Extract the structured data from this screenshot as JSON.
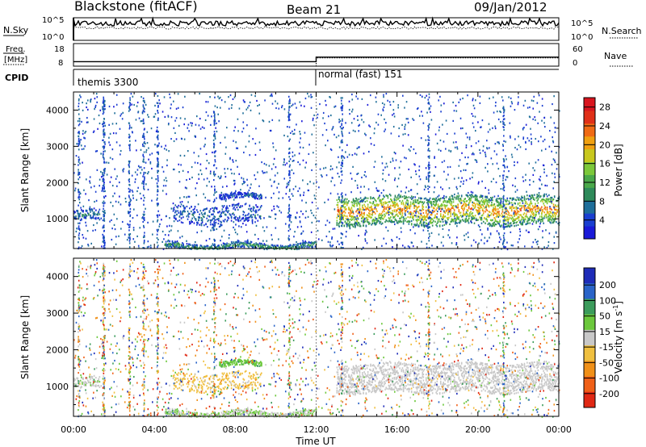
{
  "header": {
    "radar_title": "Blackstone (fitACF)",
    "beam": "Beam 21",
    "date": "09/Jan/2012"
  },
  "panels": {
    "sky": {
      "left_label": "N.Sky",
      "right_label": "N.Search",
      "tick_top": "10^5",
      "tick_bottom": "10^0",
      "right_tick_top": "10^5",
      "right_tick_bottom": "10^0"
    },
    "freq": {
      "left_label_1": "Freq.",
      "left_label_2": "[MHz]",
      "tick_top": "18",
      "tick_bottom": "8",
      "right_label": "Nave",
      "right_tick_top": "60",
      "right_tick_bottom": "0"
    },
    "cpid": {
      "label": "CPID",
      "mode_1": "themis 3300",
      "mode_2": "normal (fast) 151"
    },
    "power": {
      "ylabel": "Slant Range [km]",
      "colorbar_label": "Power [dB]"
    },
    "velocity": {
      "ylabel": "Slant Range [km]",
      "colorbar_label": "Velocity [m s",
      "colorbar_label_sup": "-1",
      "colorbar_label_end": "]"
    }
  },
  "chart_data": [
    {
      "type": "heatmap",
      "title": "Power",
      "xlabel": "Time UT",
      "ylabel": "Slant Range [km]",
      "x_ticks": [
        "00:00",
        "04:00",
        "08:00",
        "12:00",
        "16:00",
        "20:00",
        "00:00"
      ],
      "xlim_hours": [
        0,
        24
      ],
      "ylim": [
        180,
        4500
      ],
      "y_ticks": [
        1000,
        2000,
        3000,
        4000
      ],
      "colorbar": {
        "label": "Power [dB]",
        "range": [
          0,
          30
        ],
        "ticks": [
          4,
          8,
          12,
          16,
          20,
          24,
          28
        ],
        "colors": [
          "#1a1ad8",
          "#1a3fd0",
          "#1e6e9a",
          "#2e8a5a",
          "#4aa84a",
          "#7cc83a",
          "#c8c81e",
          "#f0a010",
          "#f06a14",
          "#e03018",
          "#d8141e"
        ]
      },
      "features": [
        {
          "name": "early echo band",
          "t_start": 0.0,
          "t_end": 1.3,
          "range_low": 950,
          "range_high": 1250,
          "power_dB": 6
        },
        {
          "name": "morning echo band",
          "t_start": 4.9,
          "t_end": 9.3,
          "range_low": 900,
          "range_high": 1400,
          "power_dB": 5
        },
        {
          "name": "upper echo band",
          "t_start": 7.2,
          "t_end": 9.3,
          "range_low": 1550,
          "range_high": 1700,
          "power_dB": 4
        },
        {
          "name": "main echo band",
          "t_start": 13.0,
          "t_end": 24.0,
          "range_low": 850,
          "range_high": 1650,
          "power_dB": 16
        },
        {
          "name": "ground-level scatter",
          "t_start": 4.5,
          "t_end": 12.0,
          "range_low": 180,
          "range_high": 350,
          "power_dB": 8
        }
      ]
    },
    {
      "type": "heatmap",
      "title": "Velocity",
      "xlabel": "Time UT",
      "ylabel": "Slant Range [km]",
      "x_ticks": [
        "00:00",
        "04:00",
        "08:00",
        "12:00",
        "16:00",
        "20:00",
        "00:00"
      ],
      "xlim_hours": [
        0,
        24
      ],
      "ylim": [
        180,
        4500
      ],
      "y_ticks": [
        1000,
        2000,
        3000,
        4000
      ],
      "colorbar": {
        "label": "Velocity [m s-1]",
        "range": [
          -250,
          250
        ],
        "ticks": [
          "200",
          "100",
          "50",
          "15",
          "-15",
          "-50",
          "-100",
          "-200"
        ],
        "colors": [
          "#1e2cb8",
          "#2a64c8",
          "#3c9c5c",
          "#6cc83c",
          "#c8c8c8",
          "#f0c040",
          "#f09018",
          "#f06018",
          "#e02814"
        ]
      },
      "features": [
        {
          "name": "early echo band",
          "t_start": 0.0,
          "t_end": 1.3,
          "range_low": 950,
          "range_high": 1250,
          "velocity": 0
        },
        {
          "name": "morning echo band",
          "t_start": 4.9,
          "t_end": 9.3,
          "range_low": 900,
          "range_high": 1400,
          "velocity": -60
        },
        {
          "name": "upper echo band",
          "t_start": 7.2,
          "t_end": 9.3,
          "range_low": 1550,
          "range_high": 1700,
          "velocity": 60
        },
        {
          "name": "main echo band",
          "t_start": 13.0,
          "t_end": 24.0,
          "range_low": 850,
          "range_high": 1650,
          "velocity": 0
        },
        {
          "name": "ground-level scatter",
          "t_start": 4.5,
          "t_end": 12.0,
          "range_low": 180,
          "range_high": 350,
          "velocity": 20
        }
      ]
    }
  ],
  "cpid_switch_hour": 12.0,
  "freq_data": {
    "before_switch": 10,
    "after_switch": 12
  },
  "nave_data": {
    "before_switch": 0,
    "after_switch": 22
  },
  "noise_data": {
    "sky_level": 0.75,
    "search_level": 0.55
  }
}
